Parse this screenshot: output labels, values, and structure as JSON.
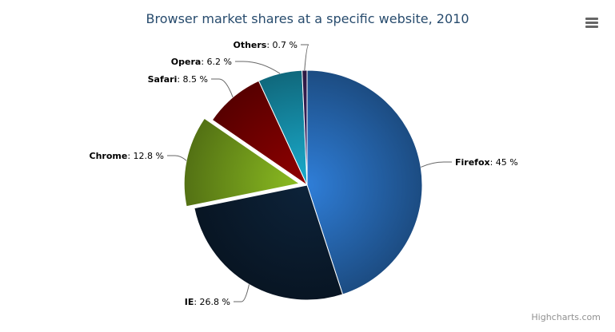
{
  "chart_data": {
    "type": "pie",
    "title": "Browser market shares at a specific website, 2010",
    "categories": [
      "Firefox",
      "IE",
      "Chrome",
      "Safari",
      "Opera",
      "Others"
    ],
    "values": [
      45.0,
      26.8,
      12.8,
      8.5,
      6.2,
      0.7
    ],
    "value_suffix": " %",
    "sliced": [
      "Chrome"
    ],
    "colors": [
      "#2f7ed8",
      "#0d233a",
      "#8bbc21",
      "#910000",
      "#1aadce",
      "#492970"
    ],
    "legend": "none"
  },
  "credit": "Highcharts.com",
  "menu_icon": "hamburger-menu-icon"
}
